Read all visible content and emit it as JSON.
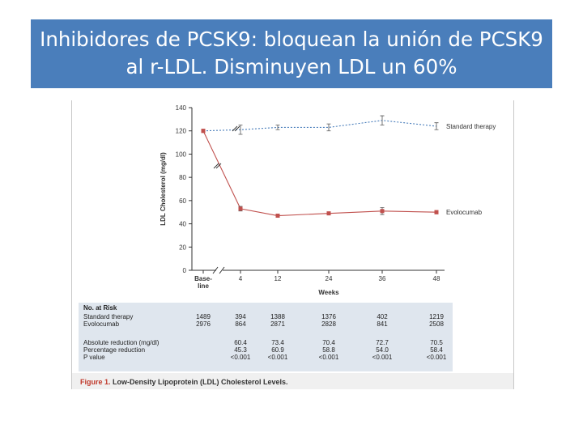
{
  "slide": {
    "title": "Inhibidores de PCSK9: bloquean la unión de PCSK9 al r-LDL. Disminuyen LDL un 60%"
  },
  "colors": {
    "title_bar": "#4a7ebb",
    "standard_therapy": "#4a7ebb",
    "evolocumab": "#c0504d",
    "caption_red": "#c0392b"
  },
  "chart_data": {
    "type": "line",
    "title": "",
    "xlabel": "Weeks",
    "ylabel": "LDL Cholesterol (mg/dl)",
    "ylim": [
      0,
      140
    ],
    "yticks": [
      0,
      20,
      40,
      60,
      80,
      100,
      120,
      140
    ],
    "categories": [
      "Base-\nline",
      "4",
      "12",
      "24",
      "36",
      "48"
    ],
    "x_tick_labels": [
      "Base-",
      "line",
      "4",
      "12",
      "24",
      "36",
      "48"
    ],
    "axis_break": true,
    "series": [
      {
        "name": "Standard therapy",
        "color": "#4a7ebb",
        "dashed": true,
        "values": [
          120,
          121,
          123,
          123,
          129,
          124
        ],
        "error": [
          0,
          4,
          2,
          3,
          4,
          3
        ]
      },
      {
        "name": "Evolocumab",
        "color": "#c0504d",
        "dashed": false,
        "values": [
          120,
          53,
          47,
          49,
          51,
          50
        ],
        "error": [
          0,
          2,
          1,
          1,
          3,
          1
        ]
      }
    ],
    "risk_table": {
      "header": "No. at Risk",
      "rows": [
        {
          "label": "Standard therapy",
          "values": [
            "1489",
            "394",
            "1388",
            "1376",
            "402",
            "1219"
          ]
        },
        {
          "label": "Evolocumab",
          "values": [
            "2976",
            "864",
            "2871",
            "2828",
            "841",
            "2508"
          ]
        }
      ]
    },
    "stats_table": {
      "rows": [
        {
          "label": "Absolute reduction (mg/dl)",
          "values": [
            "60.4",
            "73.4",
            "70.4",
            "72.7",
            "70.5"
          ]
        },
        {
          "label": "Percentage reduction",
          "values": [
            "45.3",
            "60.9",
            "58.8",
            "54.0",
            "58.4"
          ]
        },
        {
          "label": "P value",
          "values": [
            "<0.001",
            "<0.001",
            "<0.001",
            "<0.001",
            "<0.001"
          ]
        }
      ]
    },
    "caption": {
      "prefix": "Figure 1.",
      "text": " Low-Density Lipoprotein (LDL) Cholesterol Levels."
    }
  }
}
